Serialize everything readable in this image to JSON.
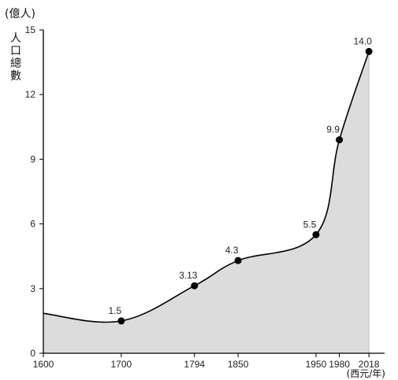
{
  "chart_data": {
    "type": "area",
    "title": "",
    "y_unit_label": "(億人)",
    "ylabel_chars": [
      "人",
      "口",
      "總",
      "數"
    ],
    "x_unit_label": "(西元/年)",
    "xlim": [
      1600,
      2030
    ],
    "ylim": [
      0,
      15
    ],
    "yticks": [
      0,
      3,
      6,
      9,
      12,
      15
    ],
    "xticks": [
      1600,
      1700,
      1794,
      1850,
      1950,
      1980,
      2018
    ],
    "curve_points": [
      {
        "x": 1600,
        "y": 1.85
      },
      {
        "x": 1700,
        "y": 1.5
      },
      {
        "x": 1794,
        "y": 3.13
      },
      {
        "x": 1850,
        "y": 4.3
      },
      {
        "x": 1950,
        "y": 5.5
      },
      {
        "x": 1980,
        "y": 9.9
      },
      {
        "x": 2018,
        "y": 14.0
      }
    ],
    "marked_points": [
      {
        "x": 1700,
        "y": 1.5,
        "label": "1.5"
      },
      {
        "x": 1794,
        "y": 3.13,
        "label": "3.13"
      },
      {
        "x": 1850,
        "y": 4.3,
        "label": "4.3"
      },
      {
        "x": 1950,
        "y": 5.5,
        "label": "5.5"
      },
      {
        "x": 1980,
        "y": 9.9,
        "label": "9.9"
      },
      {
        "x": 2018,
        "y": 14.0,
        "label": "14.0"
      }
    ],
    "grid": false,
    "fill_color": "#dcdcdc",
    "line_color": "#000000"
  }
}
